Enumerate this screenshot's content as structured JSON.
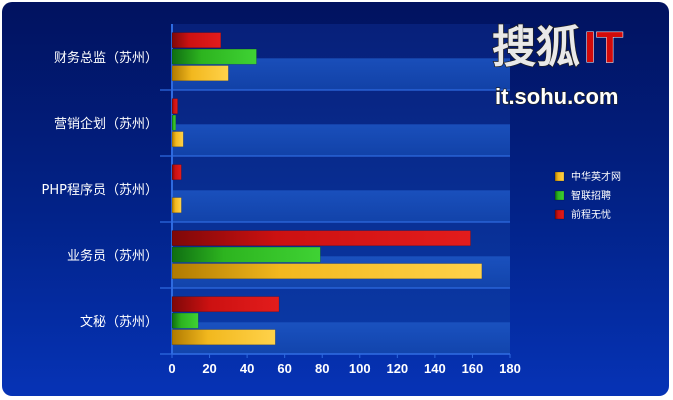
{
  "chart_data": {
    "type": "bar",
    "orientation": "horizontal",
    "categories": [
      "财务总监（苏州）",
      "营销企划（苏州）",
      "PHP程序员（苏州）",
      "业务员（苏州）",
      "文秘（苏州）"
    ],
    "series": [
      {
        "name": "中华英才网",
        "color": "#f2b81e",
        "values": [
          30,
          6,
          5,
          165,
          55
        ]
      },
      {
        "name": "智联招聘",
        "color": "#2db41f",
        "values": [
          45,
          2,
          0,
          79,
          14
        ]
      },
      {
        "name": "前程无忧",
        "color": "#cc1111",
        "values": [
          26,
          3,
          5,
          159,
          57
        ]
      }
    ],
    "x_ticks": [
      "0",
      "20",
      "40",
      "60",
      "80",
      "100",
      "120",
      "140",
      "160",
      "180"
    ],
    "xlim": [
      0,
      180
    ],
    "title": "",
    "xlabel": "",
    "ylabel": "",
    "legend_position": "right",
    "grid": false
  },
  "watermark": {
    "main": "搜狐",
    "it": "IT",
    "url": "it.sohu.com"
  }
}
